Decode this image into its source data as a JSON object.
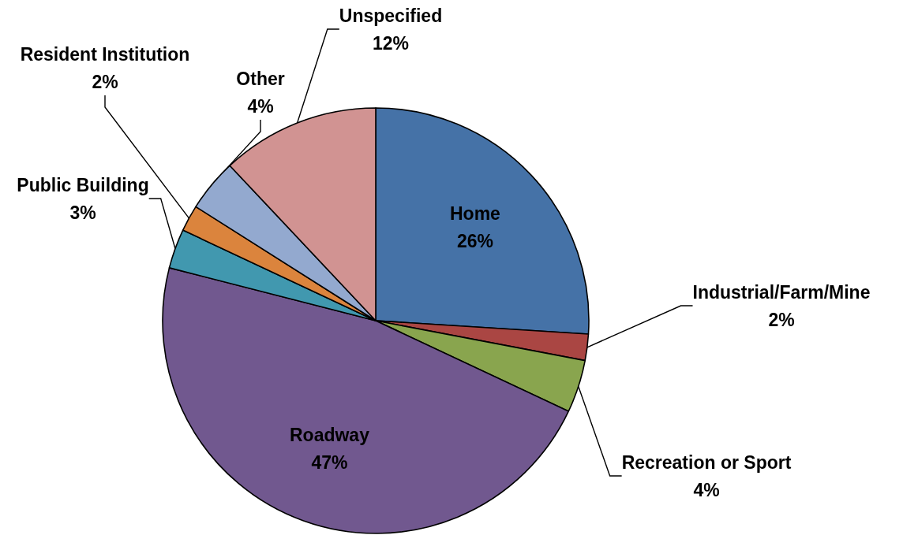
{
  "chart_data": {
    "type": "pie",
    "categories": [
      "Home",
      "Industrial/Farm/Mine",
      "Recreation or Sport",
      "Roadway",
      "Public Building",
      "Resident Institution",
      "Other",
      "Unspecified"
    ],
    "values": [
      26,
      2,
      4,
      47,
      3,
      2,
      4,
      12
    ],
    "value_labels": [
      "26%",
      "2%",
      "4%",
      "47%",
      "3%",
      "2%",
      "4%",
      "12%"
    ],
    "colors": [
      "#4572a7",
      "#aa4643",
      "#89a54e",
      "#71588f",
      "#4198af",
      "#db843d",
      "#93a9cf",
      "#d19392"
    ]
  }
}
